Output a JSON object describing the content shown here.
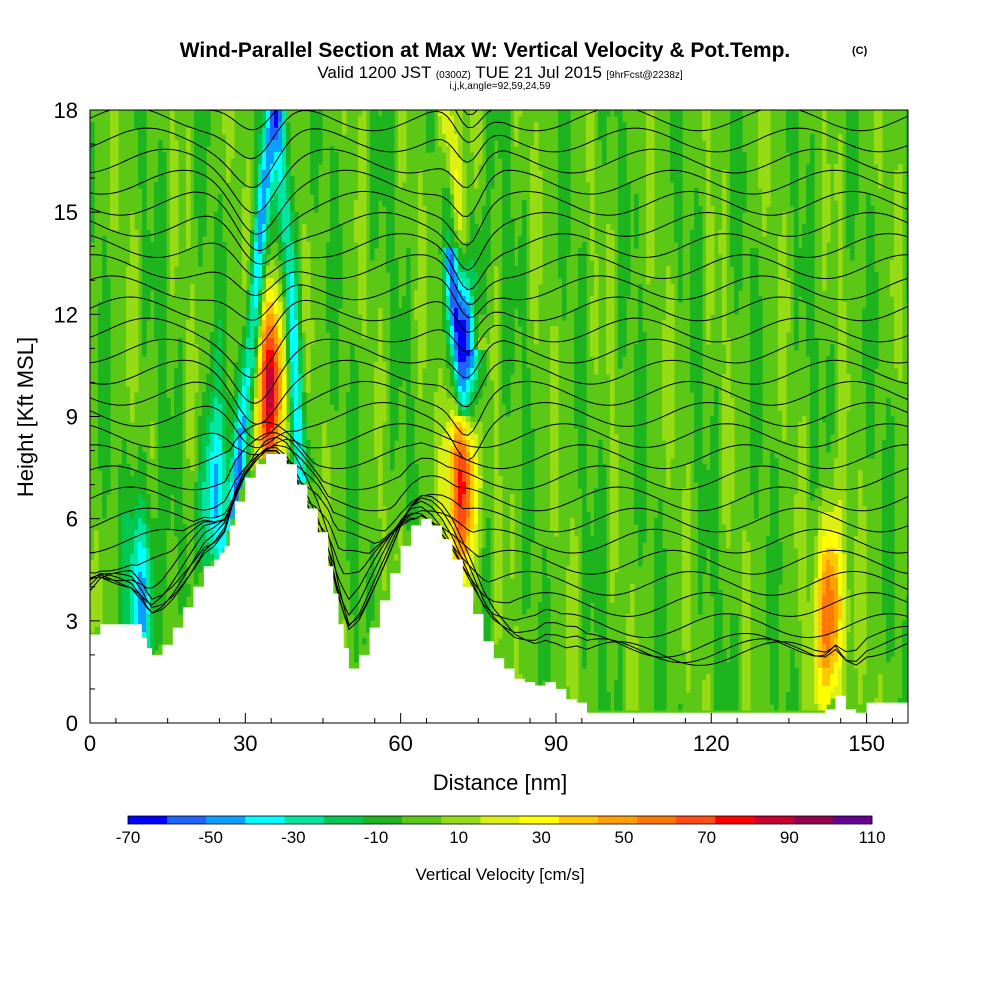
{
  "header": {
    "title": "Wind-Parallel Section at Max W: Vertical Velocity & Pot.Temp.",
    "copyright": "(C)",
    "valid_prefix": "Valid 1200 JST",
    "valid_utc": "(0300Z)",
    "valid_date": "TUE 21 Jul 2015",
    "forecast": "[9hrFcst@2238z]",
    "grid_info": "i,j,k,angle=92,59,24,59"
  },
  "chart_data": {
    "type": "heatmap",
    "xlabel": "Distance [nm]",
    "ylabel": "Height [Kft MSL]",
    "xlim": [
      0,
      158
    ],
    "ylim": [
      0,
      18
    ],
    "x_ticks": [
      0,
      30,
      60,
      90,
      120,
      150
    ],
    "y_ticks": [
      0,
      3,
      6,
      9,
      12,
      15,
      18
    ],
    "grid": false,
    "colorbar": {
      "title": "Vertical Velocity [cm/s]",
      "placement": "bottom",
      "labels": [
        -70,
        -50,
        -30,
        -10,
        10,
        30,
        50,
        70,
        90,
        110
      ],
      "bins": [
        -70,
        -60,
        -50,
        -40,
        -30,
        -20,
        -10,
        0,
        10,
        20,
        30,
        40,
        50,
        60,
        70,
        80,
        90,
        100,
        110
      ],
      "colors": [
        "#0000ff",
        "#1e64ff",
        "#0aa0ff",
        "#00ffff",
        "#00e6a0",
        "#00c850",
        "#1eb41e",
        "#5ac814",
        "#96dc14",
        "#dcf014",
        "#ffff00",
        "#ffc800",
        "#ffa000",
        "#ff7800",
        "#ff4b14",
        "#ff0000",
        "#c80032",
        "#960050",
        "#640096"
      ]
    },
    "terrain": {
      "x": [
        0,
        2,
        4,
        6,
        8,
        10,
        11,
        12,
        14,
        16,
        18,
        20,
        22,
        24,
        25,
        26,
        27,
        28,
        30,
        32,
        34,
        36,
        38,
        40,
        42,
        44,
        46,
        47,
        48,
        49,
        50,
        52,
        54,
        56,
        58,
        60,
        62,
        64,
        66,
        68,
        70,
        72,
        74,
        76,
        78,
        80,
        82,
        84,
        86,
        88,
        90,
        92,
        94,
        96,
        100,
        110,
        120,
        130,
        140,
        142,
        144,
        146,
        148,
        150,
        152,
        154,
        156,
        158
      ],
      "height": [
        2.6,
        2.9,
        2.9,
        2.9,
        2.9,
        2.5,
        2.2,
        2.0,
        2.3,
        2.8,
        3.4,
        4.0,
        4.6,
        4.8,
        5.0,
        5.2,
        5.8,
        6.5,
        7.2,
        7.6,
        7.9,
        7.9,
        7.6,
        7.0,
        6.3,
        5.6,
        4.6,
        3.8,
        2.9,
        2.2,
        1.6,
        2.0,
        2.8,
        3.6,
        4.4,
        5.2,
        5.8,
        6.0,
        5.8,
        5.4,
        4.8,
        4.0,
        3.2,
        2.4,
        1.9,
        1.6,
        1.3,
        1.2,
        1.1,
        1.2,
        1.0,
        0.7,
        0.6,
        0.3,
        0.3,
        0.3,
        0.3,
        0.3,
        0.3,
        0.4,
        0.8,
        0.4,
        0.3,
        0.6,
        0.6,
        0.6,
        0.6,
        0.6
      ]
    },
    "features": [
      {
        "type": "updraft",
        "x": 35,
        "y": 9.8,
        "value_max": 90
      },
      {
        "type": "updraft",
        "x": 72,
        "y": 7.2,
        "value_max": 90
      },
      {
        "type": "updraft",
        "x": 143,
        "y": 3.2,
        "value_max": 70
      },
      {
        "type": "downdraft",
        "x": 73,
        "y": 11.5,
        "value_min": -70
      },
      {
        "type": "downdraft",
        "x": 10,
        "y": 3.8,
        "value_min": -50
      },
      {
        "type": "downdraft",
        "x": 24,
        "y": 6.5,
        "value_min": -50
      }
    ],
    "theta_contours": {
      "levels_count": 30,
      "color": "#000000"
    }
  }
}
